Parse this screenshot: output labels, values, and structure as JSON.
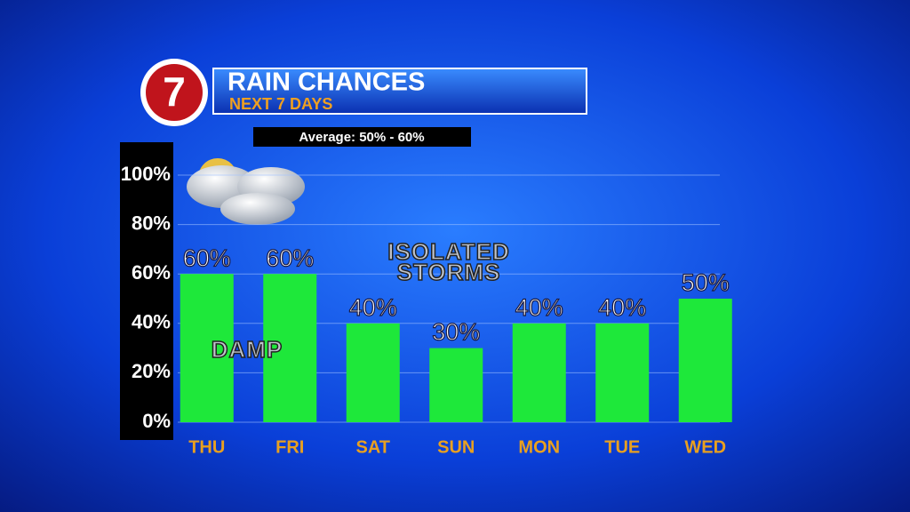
{
  "logo": "7",
  "chart_data": {
    "type": "bar",
    "title": "RAIN CHANCES",
    "subtitle": "NEXT 7 DAYS",
    "annotations": [
      "Average: 50% - 60%",
      "ISOLATED",
      "STORMS",
      "DAMP"
    ],
    "categories": [
      "THU",
      "FRI",
      "SAT",
      "SUN",
      "MON",
      "TUE",
      "WED"
    ],
    "values": [
      60,
      60,
      40,
      30,
      40,
      40,
      50
    ],
    "value_labels": [
      "60%",
      "60%",
      "40%",
      "30%",
      "40%",
      "40%",
      "50%"
    ],
    "color": "#1ee83a",
    "ylim": [
      0,
      100
    ],
    "yticks": [
      {
        "value": 0,
        "label": "0%"
      },
      {
        "value": 20,
        "label": "20%"
      },
      {
        "value": 40,
        "label": "40%"
      },
      {
        "value": 60,
        "label": "60%"
      },
      {
        "value": 80,
        "label": "80%"
      },
      {
        "value": 100,
        "label": "100%"
      }
    ],
    "grid": true
  }
}
